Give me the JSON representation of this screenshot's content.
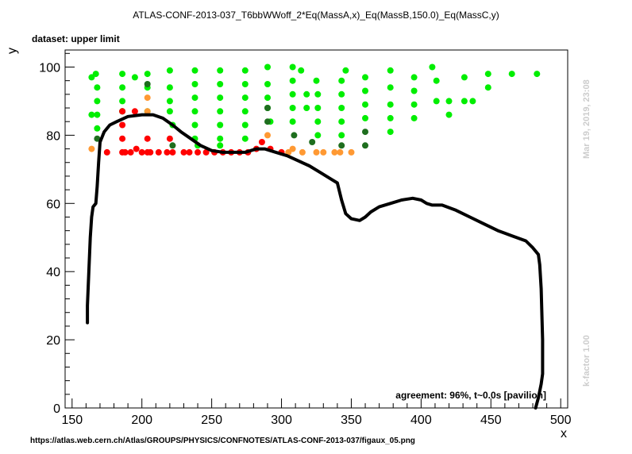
{
  "header": {
    "title": "ATLAS-CONF-2013-037_T6bbWWoff_2*Eq(MassA,x)_Eq(MassB,150.0)_Eq(MassC,y)",
    "dataset_label": "dataset: upper limit"
  },
  "side_texts": {
    "timestamp": "Mar 19, 2019, 23:08",
    "kfactor": "k-factor 1.00"
  },
  "annotation": "agreement: 96%, t~0.0s [pavilion]",
  "footer_url": "https://atlas.web.cern.ch/Atlas/GROUPS/PHYSICS/CONFNOTES/ATLAS-CONF-2013-037/figaux_05.png",
  "colors": {
    "bright_green": "#00ee00",
    "dark_green": "#1e6e1e",
    "orange": "#ff9933",
    "red": "#ff0000",
    "curve": "#000000"
  },
  "chart_data": {
    "type": "scatter",
    "title": "ATLAS-CONF-2013-037_T6bbWWoff_2*Eq(MassA,x)_Eq(MassB,150.0)_Eq(MassC,y)",
    "xlabel": "x",
    "ylabel": "y",
    "xlim": [
      145,
      505
    ],
    "ylim": [
      0,
      105
    ],
    "xticks": [
      150,
      200,
      250,
      300,
      350,
      400,
      450,
      500
    ],
    "yticks": [
      0,
      20,
      40,
      60,
      80,
      100
    ],
    "grid": false,
    "series": [
      {
        "color": "bright_green",
        "points": [
          [
            164,
            97
          ],
          [
            167,
            98
          ],
          [
            168,
            94
          ],
          [
            168,
            90
          ],
          [
            164,
            86
          ],
          [
            168,
            86
          ],
          [
            168,
            82
          ],
          [
            186,
            98
          ],
          [
            186,
            94
          ],
          [
            186,
            90
          ],
          [
            186,
            87
          ],
          [
            195,
            97
          ],
          [
            204,
            98
          ],
          [
            204,
            94
          ],
          [
            204,
            87
          ],
          [
            220,
            99
          ],
          [
            220,
            94
          ],
          [
            220,
            90
          ],
          [
            220,
            87
          ],
          [
            222,
            83
          ],
          [
            238,
            99
          ],
          [
            238,
            95
          ],
          [
            238,
            91
          ],
          [
            238,
            87
          ],
          [
            238,
            83
          ],
          [
            238,
            79
          ],
          [
            240,
            77
          ],
          [
            256,
            99
          ],
          [
            256,
            95
          ],
          [
            256,
            91
          ],
          [
            256,
            87
          ],
          [
            256,
            83
          ],
          [
            256,
            79
          ],
          [
            256,
            77
          ],
          [
            274,
            99
          ],
          [
            274,
            95
          ],
          [
            274,
            91
          ],
          [
            274,
            87
          ],
          [
            274,
            83
          ],
          [
            274,
            79
          ],
          [
            290,
            100
          ],
          [
            290,
            95
          ],
          [
            290,
            91
          ],
          [
            290,
            88
          ],
          [
            292,
            84
          ],
          [
            308,
            100
          ],
          [
            308,
            96
          ],
          [
            308,
            92
          ],
          [
            308,
            88
          ],
          [
            308,
            84
          ],
          [
            314,
            99
          ],
          [
            318,
            92
          ],
          [
            318,
            88
          ],
          [
            325,
            96
          ],
          [
            326,
            92
          ],
          [
            326,
            88
          ],
          [
            326,
            84
          ],
          [
            326,
            80
          ],
          [
            343,
            96
          ],
          [
            343,
            92
          ],
          [
            343,
            88
          ],
          [
            343,
            84
          ],
          [
            343,
            80
          ],
          [
            346,
            99
          ],
          [
            360,
            97
          ],
          [
            360,
            93
          ],
          [
            360,
            89
          ],
          [
            360,
            85
          ],
          [
            378,
            99
          ],
          [
            378,
            94
          ],
          [
            378,
            89
          ],
          [
            378,
            85
          ],
          [
            378,
            81
          ],
          [
            395,
            97
          ],
          [
            395,
            93
          ],
          [
            395,
            89
          ],
          [
            395,
            85
          ],
          [
            408,
            100
          ],
          [
            411,
            96
          ],
          [
            411,
            90
          ],
          [
            420,
            90
          ],
          [
            420,
            86
          ],
          [
            431,
            97
          ],
          [
            431,
            90
          ],
          [
            437,
            90
          ],
          [
            448,
            98
          ],
          [
            448,
            94
          ],
          [
            465,
            98
          ],
          [
            483,
            98
          ]
        ]
      },
      {
        "color": "dark_green",
        "points": [
          [
            186,
            87
          ],
          [
            204,
            95
          ],
          [
            168,
            79
          ],
          [
            222,
            77
          ],
          [
            290,
            88
          ],
          [
            290,
            84
          ],
          [
            309,
            80
          ],
          [
            322,
            78
          ],
          [
            343,
            77
          ],
          [
            360,
            81
          ],
          [
            360,
            77
          ]
        ]
      },
      {
        "color": "orange",
        "points": [
          [
            164,
            76
          ],
          [
            204,
            91
          ],
          [
            204,
            87
          ],
          [
            290,
            80
          ],
          [
            300,
            75
          ],
          [
            305,
            75
          ],
          [
            308,
            76
          ],
          [
            315,
            75
          ],
          [
            325,
            75
          ],
          [
            330,
            75
          ],
          [
            338,
            75
          ],
          [
            342,
            75
          ],
          [
            350,
            75
          ]
        ]
      },
      {
        "color": "red",
        "points": [
          [
            186,
            87
          ],
          [
            186,
            83
          ],
          [
            186,
            79
          ],
          [
            195,
            87
          ],
          [
            204,
            79
          ],
          [
            220,
            79
          ],
          [
            175,
            75
          ],
          [
            186,
            75
          ],
          [
            188,
            75
          ],
          [
            192,
            75
          ],
          [
            196,
            76
          ],
          [
            200,
            75
          ],
          [
            204,
            75
          ],
          [
            206,
            75
          ],
          [
            212,
            75
          ],
          [
            218,
            75
          ],
          [
            222,
            75
          ],
          [
            230,
            75
          ],
          [
            234,
            75
          ],
          [
            240,
            75
          ],
          [
            246,
            75
          ],
          [
            252,
            75
          ],
          [
            258,
            75
          ],
          [
            264,
            75
          ],
          [
            270,
            75
          ],
          [
            276,
            75
          ],
          [
            282,
            76
          ],
          [
            286,
            78
          ],
          [
            292,
            76
          ],
          [
            300,
            75
          ]
        ]
      }
    ],
    "curve": {
      "name": "exclusion contour",
      "points": [
        [
          161,
          25
        ],
        [
          161,
          30
        ],
        [
          162,
          40
        ],
        [
          163,
          50
        ],
        [
          164,
          56
        ],
        [
          165,
          59
        ],
        [
          167,
          60
        ],
        [
          168,
          65
        ],
        [
          169,
          72
        ],
        [
          170,
          78
        ],
        [
          173,
          81
        ],
        [
          177,
          83
        ],
        [
          182,
          84
        ],
        [
          190,
          85.5
        ],
        [
          200,
          86
        ],
        [
          208,
          86
        ],
        [
          215,
          85
        ],
        [
          222,
          83
        ],
        [
          228,
          81
        ],
        [
          235,
          79
        ],
        [
          242,
          77
        ],
        [
          250,
          75.5
        ],
        [
          258,
          75
        ],
        [
          266,
          75
        ],
        [
          274,
          75
        ],
        [
          282,
          76
        ],
        [
          288,
          76
        ],
        [
          296,
          75
        ],
        [
          304,
          74
        ],
        [
          312,
          72.5
        ],
        [
          320,
          71
        ],
        [
          328,
          69
        ],
        [
          336,
          67
        ],
        [
          340,
          66
        ],
        [
          343,
          61
        ],
        [
          346,
          57
        ],
        [
          350,
          55.5
        ],
        [
          356,
          55
        ],
        [
          360,
          56
        ],
        [
          364,
          57.5
        ],
        [
          370,
          59
        ],
        [
          378,
          60
        ],
        [
          386,
          61
        ],
        [
          394,
          61.5
        ],
        [
          400,
          61
        ],
        [
          404,
          60
        ],
        [
          408,
          59.5
        ],
        [
          415,
          59.5
        ],
        [
          425,
          58
        ],
        [
          435,
          56
        ],
        [
          445,
          54
        ],
        [
          455,
          52
        ],
        [
          465,
          50.5
        ],
        [
          475,
          49
        ],
        [
          480,
          47
        ],
        [
          484,
          45
        ],
        [
          485,
          42
        ],
        [
          486,
          35
        ],
        [
          487,
          20
        ],
        [
          487,
          10
        ],
        [
          486,
          7
        ],
        [
          484,
          3
        ],
        [
          482,
          0
        ]
      ]
    }
  }
}
